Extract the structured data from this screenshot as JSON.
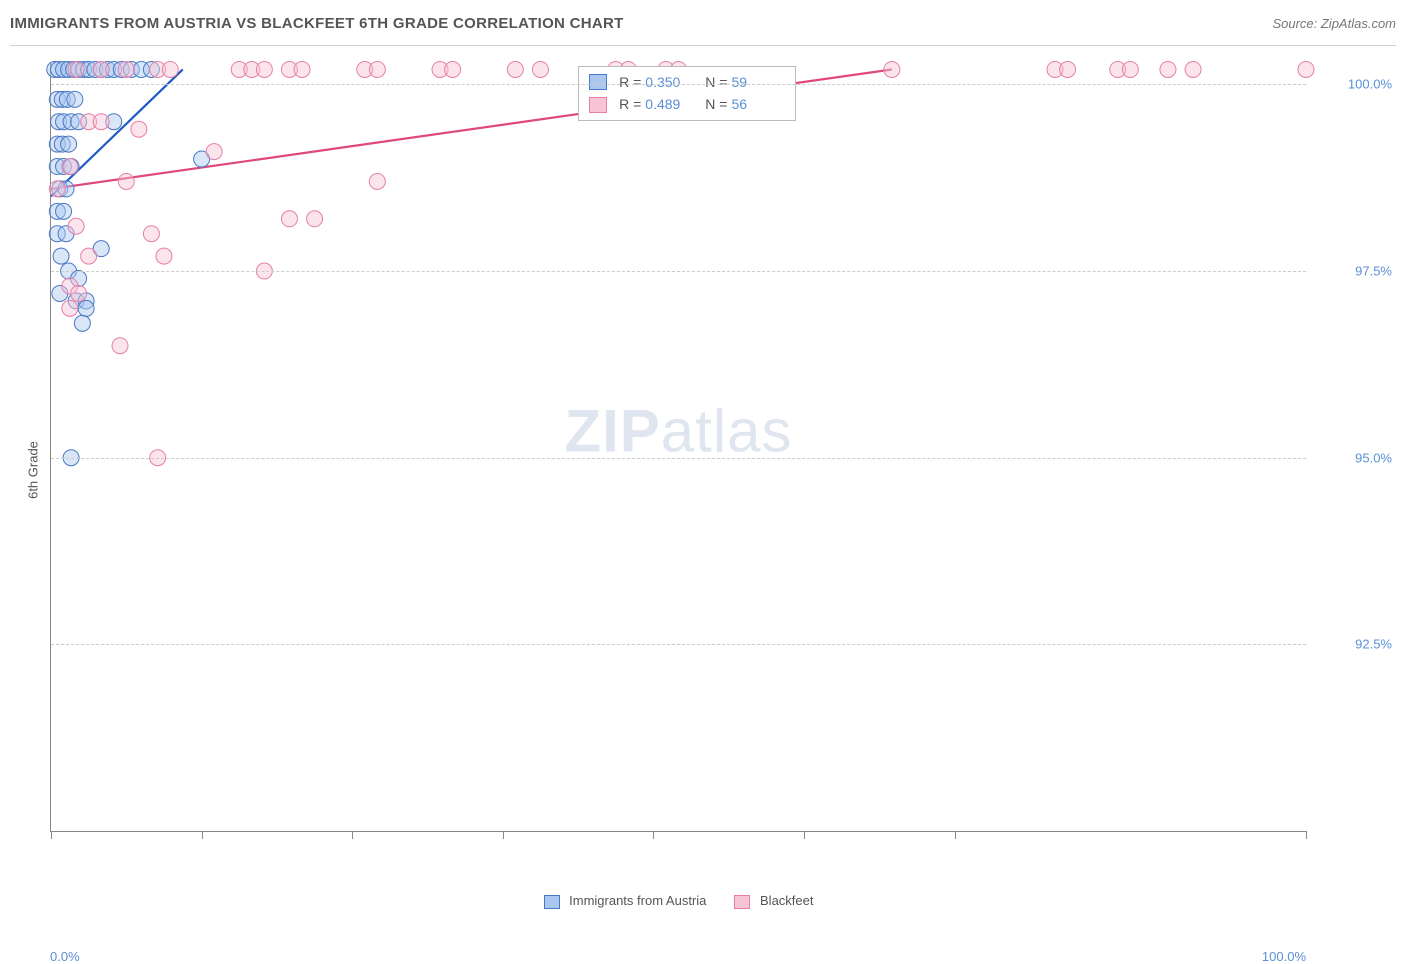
{
  "header": {
    "title": "IMMIGRANTS FROM AUSTRIA VS BLACKFEET 6TH GRADE CORRELATION CHART",
    "source": "Source: ZipAtlas.com"
  },
  "chart": {
    "type": "scatter",
    "ylabel": "6th Grade",
    "xlim": [
      0,
      100
    ],
    "ylim": [
      90,
      100.3
    ],
    "yticks": [
      {
        "value": 100.0,
        "label": "100.0%"
      },
      {
        "value": 97.5,
        "label": "97.5%"
      },
      {
        "value": 95.0,
        "label": "95.0%"
      },
      {
        "value": 92.5,
        "label": "92.5%"
      }
    ],
    "xticks_pct": [
      0,
      12,
      24,
      36,
      48,
      60,
      72,
      100
    ],
    "xmin_label": "0.0%",
    "xmax_label": "100.0%",
    "background_color": "#ffffff",
    "grid_color": "#cccccc",
    "axis_color": "#888888",
    "label_color": "#5b8fd6",
    "marker_radius": 8,
    "marker_opacity": 0.45,
    "line_width": 2.2,
    "watermark_bold": "ZIP",
    "watermark_light": "atlas",
    "series": [
      {
        "key": "austria",
        "legend_label": "Immigrants from Austria",
        "color_fill": "#a9c7ef",
        "color_stroke": "#4a78c4",
        "line_color": "#1f5bc4",
        "r_value": "0.350",
        "n_value": "59",
        "trend": {
          "x1": 0,
          "y1": 98.5,
          "x2": 10.5,
          "y2": 100.2
        },
        "points": [
          {
            "x": 0.3,
            "y": 100.2
          },
          {
            "x": 0.6,
            "y": 100.2
          },
          {
            "x": 1.0,
            "y": 100.2
          },
          {
            "x": 1.4,
            "y": 100.2
          },
          {
            "x": 1.8,
            "y": 100.2
          },
          {
            "x": 2.2,
            "y": 100.2
          },
          {
            "x": 2.6,
            "y": 100.2
          },
          {
            "x": 3.0,
            "y": 100.2
          },
          {
            "x": 3.5,
            "y": 100.2
          },
          {
            "x": 4.0,
            "y": 100.2
          },
          {
            "x": 4.5,
            "y": 100.2
          },
          {
            "x": 5.0,
            "y": 100.2
          },
          {
            "x": 5.6,
            "y": 100.2
          },
          {
            "x": 6.4,
            "y": 100.2
          },
          {
            "x": 7.2,
            "y": 100.2
          },
          {
            "x": 8.0,
            "y": 100.2
          },
          {
            "x": 0.5,
            "y": 99.8
          },
          {
            "x": 0.9,
            "y": 99.8
          },
          {
            "x": 1.3,
            "y": 99.8
          },
          {
            "x": 1.9,
            "y": 99.8
          },
          {
            "x": 0.6,
            "y": 99.5
          },
          {
            "x": 1.0,
            "y": 99.5
          },
          {
            "x": 1.6,
            "y": 99.5
          },
          {
            "x": 2.2,
            "y": 99.5
          },
          {
            "x": 5.0,
            "y": 99.5
          },
          {
            "x": 0.5,
            "y": 99.2
          },
          {
            "x": 0.9,
            "y": 99.2
          },
          {
            "x": 1.4,
            "y": 99.2
          },
          {
            "x": 0.5,
            "y": 98.9
          },
          {
            "x": 1.0,
            "y": 98.9
          },
          {
            "x": 1.6,
            "y": 98.9
          },
          {
            "x": 12.0,
            "y": 99.0
          },
          {
            "x": 0.7,
            "y": 98.6
          },
          {
            "x": 1.2,
            "y": 98.6
          },
          {
            "x": 0.5,
            "y": 98.3
          },
          {
            "x": 1.0,
            "y": 98.3
          },
          {
            "x": 0.5,
            "y": 98.0
          },
          {
            "x": 1.2,
            "y": 98.0
          },
          {
            "x": 4.0,
            "y": 97.8
          },
          {
            "x": 0.8,
            "y": 97.7
          },
          {
            "x": 1.4,
            "y": 97.5
          },
          {
            "x": 2.2,
            "y": 97.4
          },
          {
            "x": 0.7,
            "y": 97.2
          },
          {
            "x": 2.0,
            "y": 97.1
          },
          {
            "x": 2.8,
            "y": 97.1
          },
          {
            "x": 2.5,
            "y": 96.8
          },
          {
            "x": 2.8,
            "y": 97.0
          },
          {
            "x": 1.6,
            "y": 95.0
          }
        ]
      },
      {
        "key": "blackfeet",
        "legend_label": "Blackfeet",
        "color_fill": "#f6c4d4",
        "color_stroke": "#e57faa",
        "line_color": "#e0477f",
        "r_value": "0.489",
        "n_value": "56",
        "trend": {
          "x1": 0,
          "y1": 98.6,
          "x2": 67,
          "y2": 100.2
        },
        "points": [
          {
            "x": 2,
            "y": 100.2
          },
          {
            "x": 4,
            "y": 100.2
          },
          {
            "x": 6,
            "y": 100.2
          },
          {
            "x": 8.5,
            "y": 100.2
          },
          {
            "x": 9.5,
            "y": 100.2
          },
          {
            "x": 15,
            "y": 100.2
          },
          {
            "x": 16,
            "y": 100.2
          },
          {
            "x": 17,
            "y": 100.2
          },
          {
            "x": 19,
            "y": 100.2
          },
          {
            "x": 20,
            "y": 100.2
          },
          {
            "x": 25,
            "y": 100.2
          },
          {
            "x": 26,
            "y": 100.2
          },
          {
            "x": 31,
            "y": 100.2
          },
          {
            "x": 32,
            "y": 100.2
          },
          {
            "x": 37,
            "y": 100.2
          },
          {
            "x": 39,
            "y": 100.2
          },
          {
            "x": 45,
            "y": 100.2
          },
          {
            "x": 46,
            "y": 100.2
          },
          {
            "x": 49,
            "y": 100.2
          },
          {
            "x": 50,
            "y": 100.2
          },
          {
            "x": 67,
            "y": 100.2
          },
          {
            "x": 80,
            "y": 100.2
          },
          {
            "x": 81,
            "y": 100.2
          },
          {
            "x": 85,
            "y": 100.2
          },
          {
            "x": 86,
            "y": 100.2
          },
          {
            "x": 89,
            "y": 100.2
          },
          {
            "x": 91,
            "y": 100.2
          },
          {
            "x": 100,
            "y": 100.2
          },
          {
            "x": 3,
            "y": 99.5
          },
          {
            "x": 4,
            "y": 99.5
          },
          {
            "x": 7,
            "y": 99.4
          },
          {
            "x": 13,
            "y": 99.1
          },
          {
            "x": 1.5,
            "y": 98.9
          },
          {
            "x": 6,
            "y": 98.7
          },
          {
            "x": 0.5,
            "y": 98.6
          },
          {
            "x": 26,
            "y": 98.7
          },
          {
            "x": 19,
            "y": 98.2
          },
          {
            "x": 21,
            "y": 98.2
          },
          {
            "x": 2,
            "y": 98.1
          },
          {
            "x": 8,
            "y": 98.0
          },
          {
            "x": 3,
            "y": 97.7
          },
          {
            "x": 9,
            "y": 97.7
          },
          {
            "x": 17,
            "y": 97.5
          },
          {
            "x": 1.5,
            "y": 97.3
          },
          {
            "x": 2.2,
            "y": 97.2
          },
          {
            "x": 1.5,
            "y": 97.0
          },
          {
            "x": 5.5,
            "y": 96.5
          },
          {
            "x": 8.5,
            "y": 95.0
          }
        ]
      }
    ],
    "stats_labels": {
      "r": "R =",
      "n": "N ="
    }
  }
}
